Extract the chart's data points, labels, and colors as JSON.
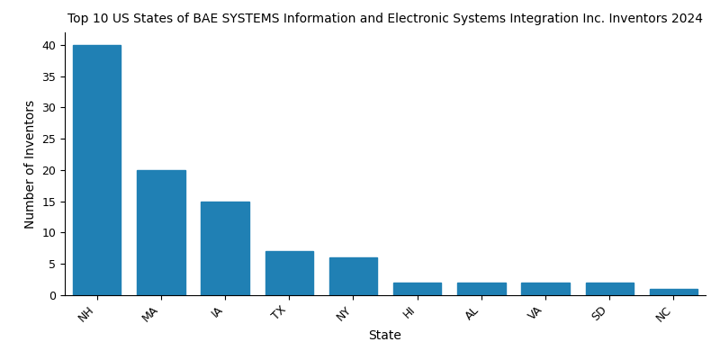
{
  "title": "Top 10 US States of BAE SYSTEMS Information and Electronic Systems Integration Inc. Inventors 2024",
  "xlabel": "State",
  "ylabel": "Number of Inventors",
  "categories": [
    "NH",
    "MA",
    "IA",
    "TX",
    "NY",
    "HI",
    "AL",
    "VA",
    "SD",
    "NC"
  ],
  "values": [
    40,
    20,
    15,
    7,
    6,
    2,
    2,
    2,
    2,
    1
  ],
  "bar_color": "#2080b4",
  "ylim": [
    0,
    42
  ],
  "yticks": [
    0,
    5,
    10,
    15,
    20,
    25,
    30,
    35,
    40
  ],
  "background_color": "#ffffff",
  "title_fontsize": 10,
  "label_fontsize": 10,
  "tick_fontsize": 9,
  "bar_width": 0.75,
  "figsize": [
    8,
    4
  ],
  "dpi": 100
}
